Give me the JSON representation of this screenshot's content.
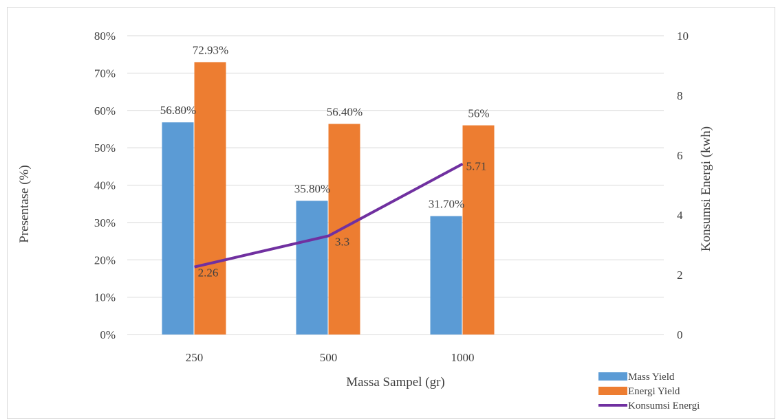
{
  "chart_data": {
    "type": "bar",
    "categories": [
      "250",
      "500",
      "1000"
    ],
    "series": [
      {
        "name": "Mass Yield",
        "kind": "bar",
        "axis": "left",
        "color": "#5b9bd5",
        "values": [
          56.8,
          35.8,
          31.7
        ],
        "labels": [
          "56.80%",
          "35.80%",
          "31.70%"
        ]
      },
      {
        "name": "Energi Yield",
        "kind": "bar",
        "axis": "left",
        "color": "#ed7d31",
        "values": [
          72.93,
          56.4,
          56
        ],
        "labels": [
          "72.93%",
          "56.40%",
          "56%"
        ]
      },
      {
        "name": "Konsumsi Energi",
        "kind": "line",
        "axis": "right",
        "color": "#7030a0",
        "values": [
          2.26,
          3.3,
          5.71
        ],
        "labels": [
          "2.26",
          "3.3",
          "5.71"
        ]
      }
    ],
    "xlabel": "Massa Sampel (gr)",
    "ylabel": "Presentase (%)",
    "y2label": "Konsumsi Energi (kwh)",
    "ylim": [
      0,
      80
    ],
    "y2lim": [
      0,
      10
    ],
    "yticks": [
      "0%",
      "10%",
      "20%",
      "30%",
      "40%",
      "50%",
      "60%",
      "70%",
      "80%"
    ],
    "y2ticks": [
      "0",
      "2",
      "4",
      "6",
      "8",
      "10"
    ],
    "grid": true,
    "legend_position": "bottom-right",
    "colors": {
      "gridline": "#d9d9d9",
      "text": "#404040"
    }
  }
}
